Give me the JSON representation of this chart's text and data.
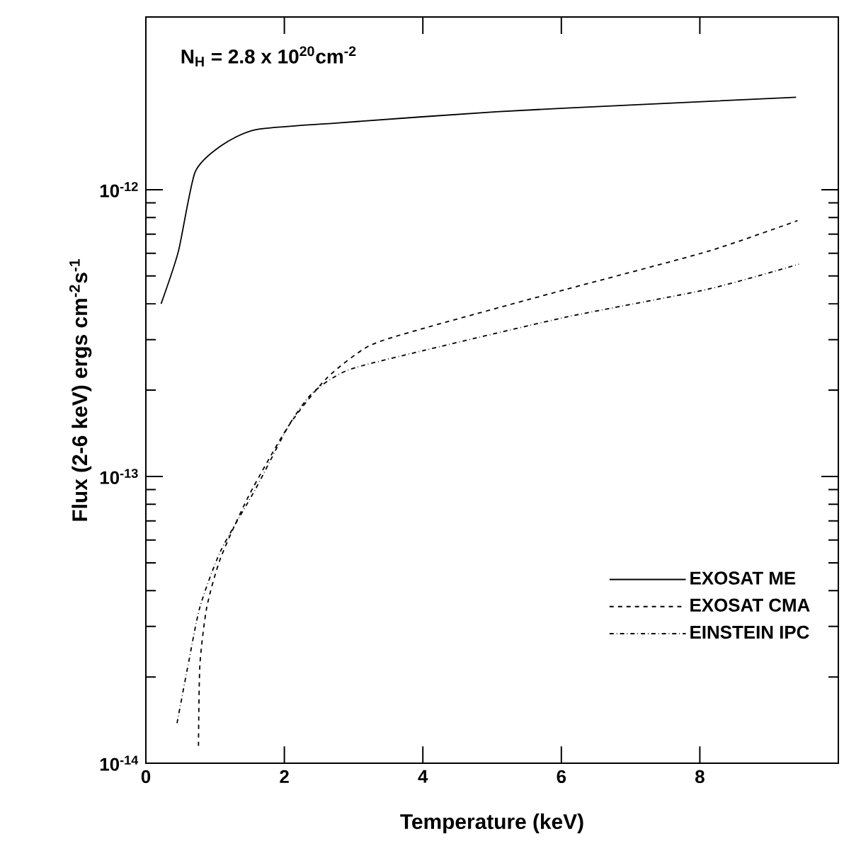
{
  "chart_data": {
    "type": "line",
    "xlabel": "Temperature (keV)",
    "ylabel": "Flux (2-6 keV) ergs cm$^{-2}$s$^{-1}$",
    "annotations": [
      "N$_{H}$ = 2.8 x 10$^{20}$cm$^{-2}$"
    ],
    "log": "y",
    "xlim": [
      0,
      10
    ],
    "ylim": [
      1e-14,
      4e-12
    ],
    "xticks": [
      0,
      2,
      4,
      6,
      8
    ],
    "yticks": [
      {
        "value": 1e-14,
        "label": "10$^{-14}$"
      },
      {
        "value": 1e-13,
        "label": "10$^{-13}$"
      },
      {
        "value": 1e-12,
        "label": "10$^{-12}$"
      }
    ],
    "legend": "right",
    "marker": "none",
    "grid": false,
    "series": [
      {
        "name": "EXOSAT ME",
        "color": "#000000",
        "line_style": "solid",
        "x": [
          0.22,
          0.47,
          0.71,
          1.08,
          1.59,
          2.78,
          5.06,
          7.1,
          9.39
        ],
        "values": [
          4e-13,
          6.1e-13,
          1.15e-12,
          1.42e-12,
          1.62e-12,
          1.71e-12,
          1.87e-12,
          1.98e-12,
          2.1e-12
        ]
      },
      {
        "name": "EXOSAT CMA",
        "color": "#000000",
        "line_style": "dashed",
        "x": [
          0.76,
          0.78,
          0.88,
          1.08,
          1.49,
          2.06,
          2.61,
          3.22,
          4.04,
          6.08,
          8.12,
          9.41
        ],
        "values": [
          1.15e-14,
          2.2e-14,
          3.5e-14,
          5.2e-14,
          8.6e-14,
          1.5e-13,
          2.2e-13,
          2.85e-13,
          3.3e-13,
          4.5e-13,
          6.1e-13,
          7.8e-13
        ]
      },
      {
        "name": "EINSTEIN IPC",
        "color": "#000000",
        "line_style": "dashdot",
        "x": [
          0.45,
          0.61,
          0.78,
          1.08,
          1.59,
          2.06,
          2.41,
          2.92,
          4.04,
          6.08,
          8.12,
          9.43
        ],
        "values": [
          1.38e-14,
          2.2e-14,
          3.5e-14,
          5.5e-14,
          9.1e-14,
          1.5e-13,
          1.96e-13,
          2.35e-13,
          2.76e-13,
          3.6e-13,
          4.5e-13,
          5.5e-13
        ]
      }
    ]
  }
}
